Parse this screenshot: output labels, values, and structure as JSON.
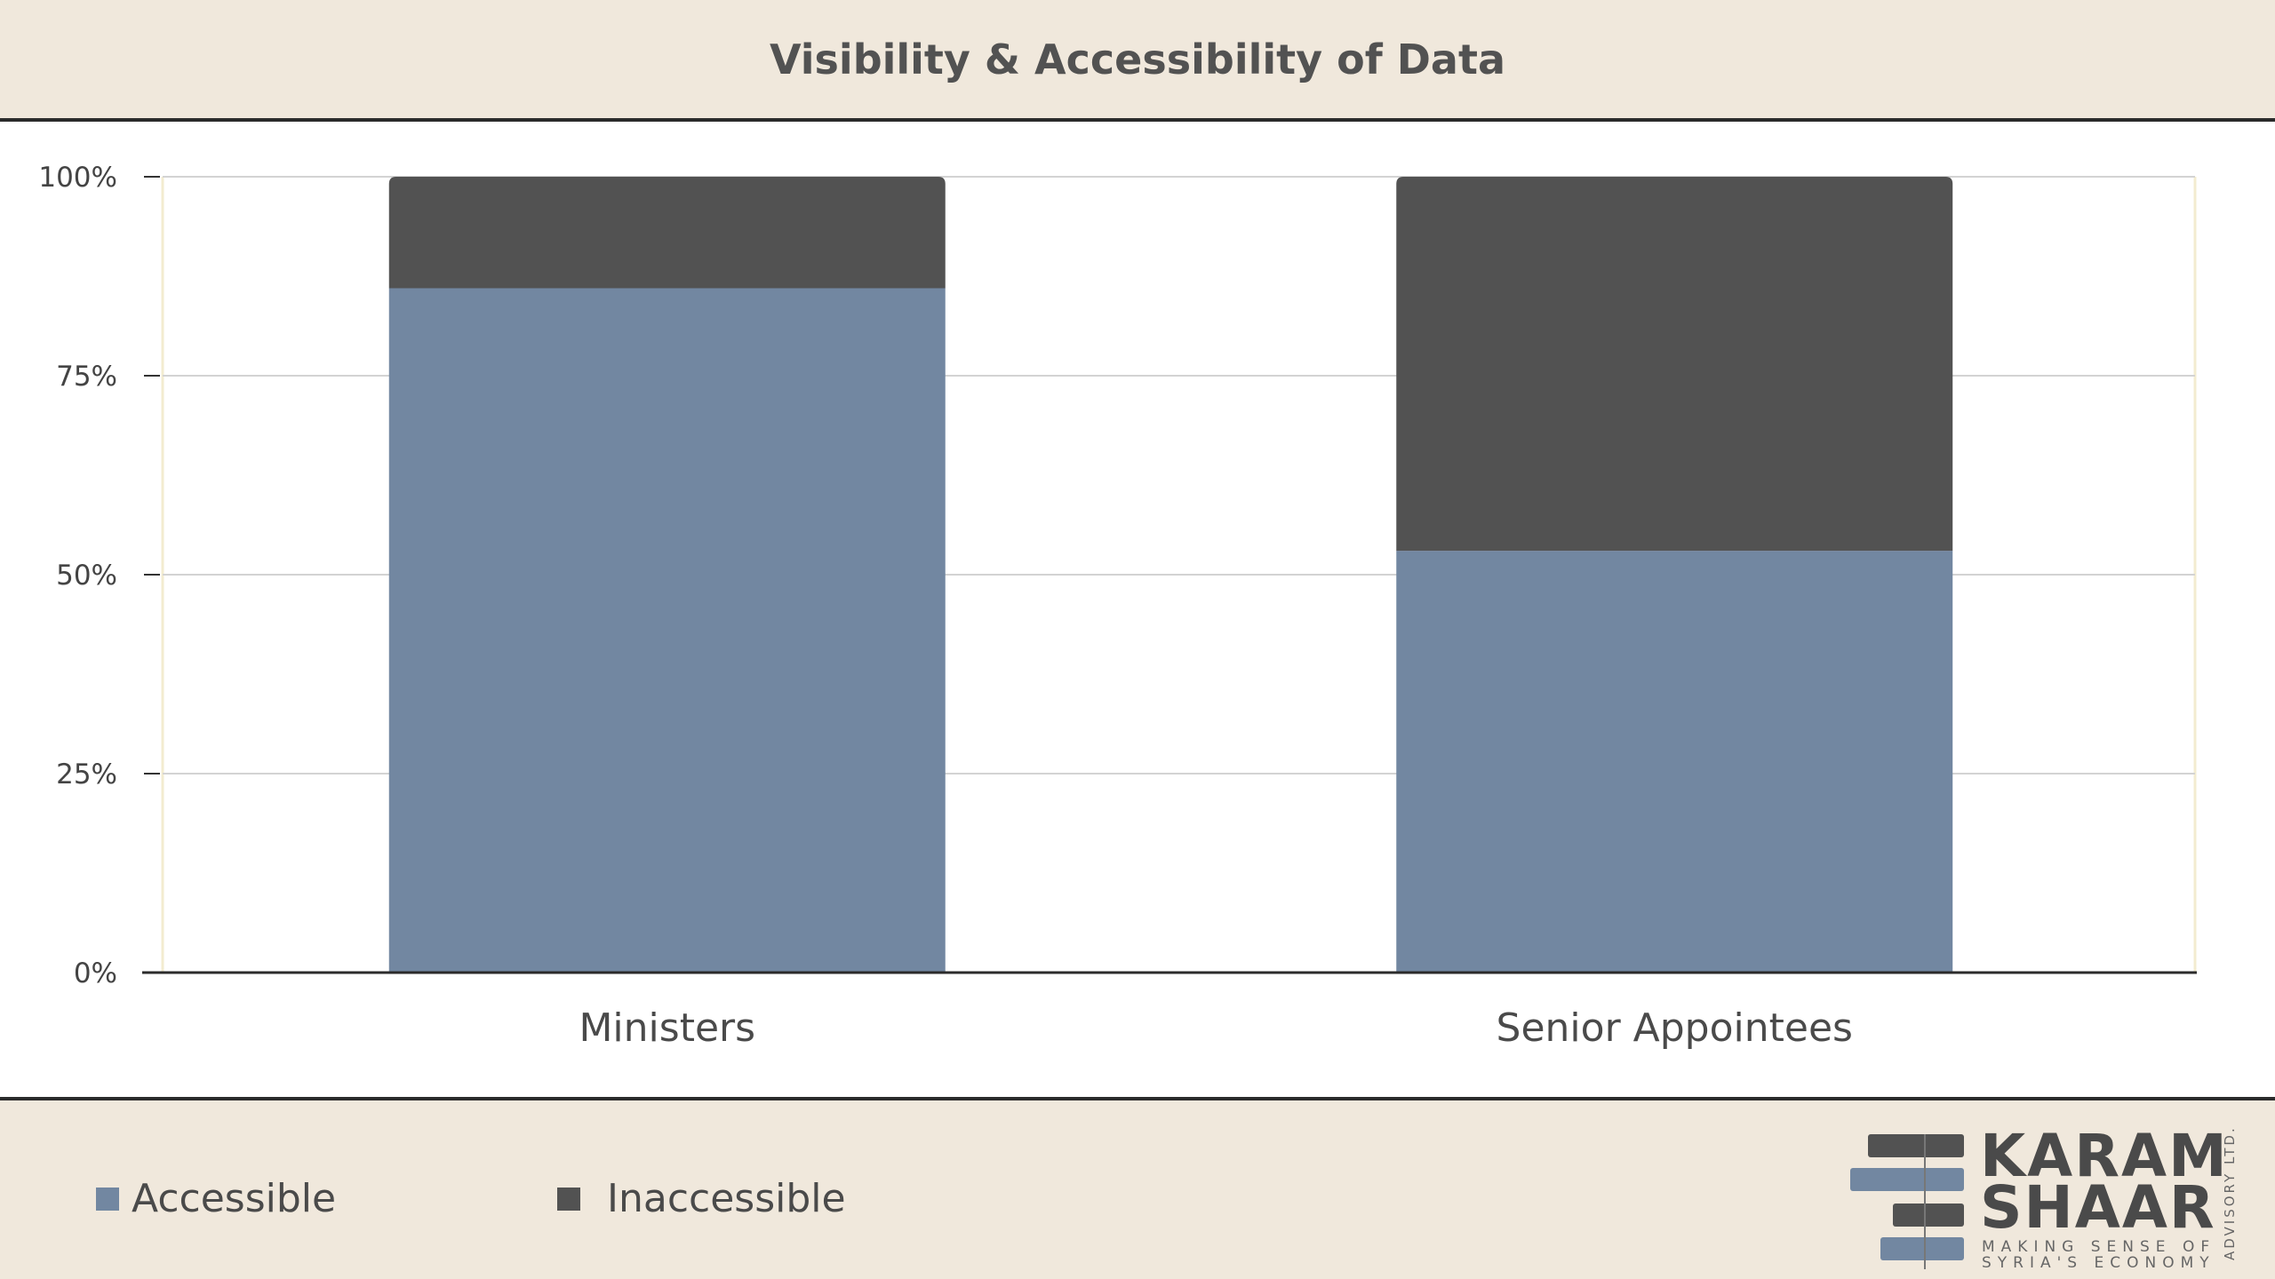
{
  "chart_data": {
    "type": "bar",
    "stacked": true,
    "title": "Visibility & Accessibility of Data",
    "categories": [
      "Ministers",
      "Senior Appointees"
    ],
    "series": [
      {
        "name": "Accessible",
        "color": "#7287a1",
        "values": [
          86,
          53
        ]
      },
      {
        "name": "Inaccessible",
        "color": "#525252",
        "values": [
          14,
          47
        ]
      }
    ],
    "yticks": [
      "0%",
      "25%",
      "50%",
      "75%",
      "100%"
    ],
    "ylim": [
      0,
      100
    ],
    "grid": true,
    "legend_position": "bottom-left"
  },
  "legend": {
    "accessible_label": "Accessible",
    "inaccessible_label": "Inaccessible"
  },
  "logo": {
    "line1": "KARAM",
    "line2": "SHAAR",
    "tagline1": "MAKING SENSE OF",
    "tagline2": "SYRIA'S ECONOMY",
    "side_text": "ADVISORY LTD."
  }
}
